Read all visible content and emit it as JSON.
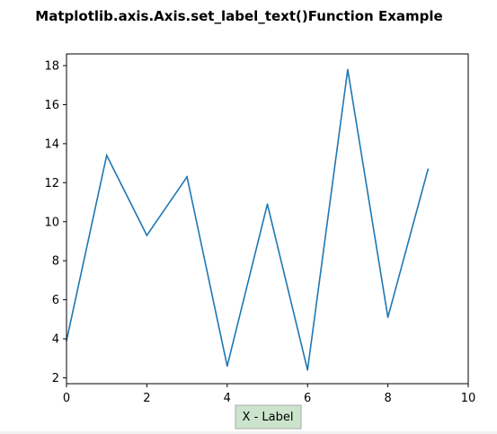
{
  "chart_data": {
    "type": "line",
    "title": "Matplotlib.axis.Axis.set_label_text()Function Example",
    "xlabel": "X - Label",
    "ylabel": "",
    "x": [
      0,
      1,
      2,
      3,
      4,
      5,
      6,
      7,
      8,
      9
    ],
    "series": [
      {
        "values": [
          3.9,
          13.4,
          9.3,
          12.3,
          2.6,
          10.9,
          2.4,
          17.8,
          5.1,
          12.7
        ],
        "color": "#1f77b4"
      }
    ],
    "xlim": [
      0,
      10
    ],
    "ylim": [
      1.7,
      18.6
    ],
    "xticks": [
      0,
      2,
      4,
      6,
      8,
      10
    ],
    "yticks": [
      2,
      4,
      6,
      8,
      10,
      12,
      14,
      16,
      18
    ],
    "xtick_labels": [
      "0",
      "2",
      "4",
      "6",
      "8",
      "10"
    ],
    "ytick_labels": [
      "2",
      "4",
      "6",
      "8",
      "10",
      "12",
      "14",
      "16",
      "18"
    ],
    "grid": false,
    "legend": false,
    "xlabel_box_color": "#cce3cc",
    "xlabel_box_border": "#aaaaaa"
  }
}
